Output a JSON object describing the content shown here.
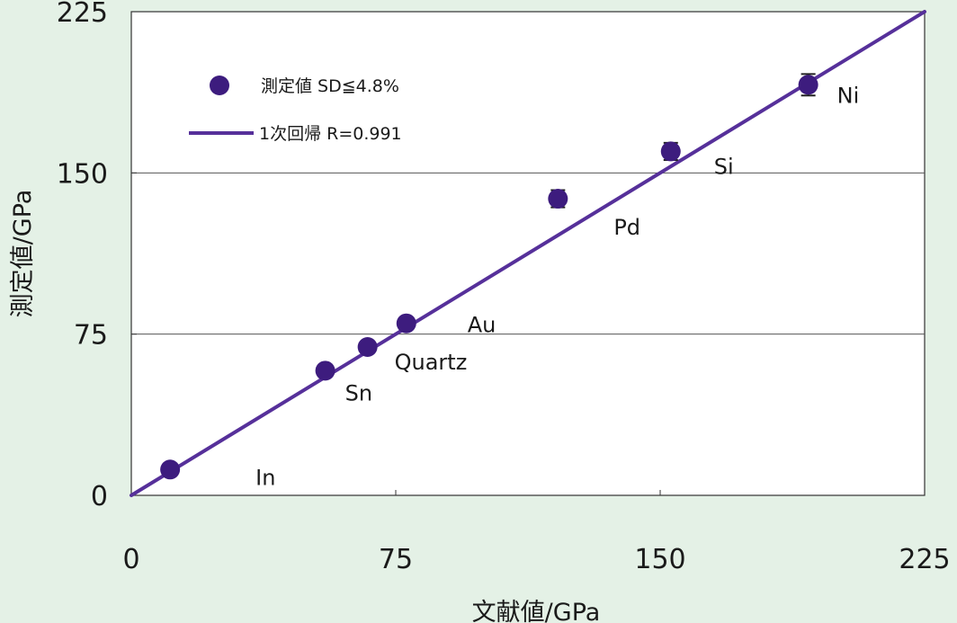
{
  "chart_data": {
    "type": "scatter",
    "xlabel": "文献値/GPa",
    "ylabel": "測定値/GPa",
    "xlim": [
      0,
      225
    ],
    "ylim": [
      0,
      225
    ],
    "xticks": [
      "0",
      "75",
      "150",
      "225"
    ],
    "yticks": [
      "0",
      "75",
      "150",
      "225"
    ],
    "grid": "horizontal",
    "legend_position": "top-left",
    "colors": {
      "marker": "#3d1c7e",
      "line": "#56309a",
      "grid": "#555555",
      "background": "#ffffff",
      "page": "#e4f1e6"
    },
    "series": [
      {
        "name": "測定値 SD≦4.8%",
        "kind": "scatter",
        "points": [
          {
            "label": "In",
            "x": 11,
            "y": 12
          },
          {
            "label": "Sn",
            "x": 55,
            "y": 58
          },
          {
            "label": "Quartz",
            "x": 67,
            "y": 69
          },
          {
            "label": "Au",
            "x": 78,
            "y": 80
          },
          {
            "label": "Pd",
            "x": 121,
            "y": 138,
            "err": 4
          },
          {
            "label": "Si",
            "x": 153,
            "y": 160,
            "err": 4
          },
          {
            "label": "Ni",
            "x": 192,
            "y": 191,
            "err": 5
          }
        ]
      },
      {
        "name": "1次回帰 R=0.991",
        "kind": "line",
        "x": [
          0,
          225
        ],
        "y": [
          0,
          225
        ]
      }
    ]
  }
}
